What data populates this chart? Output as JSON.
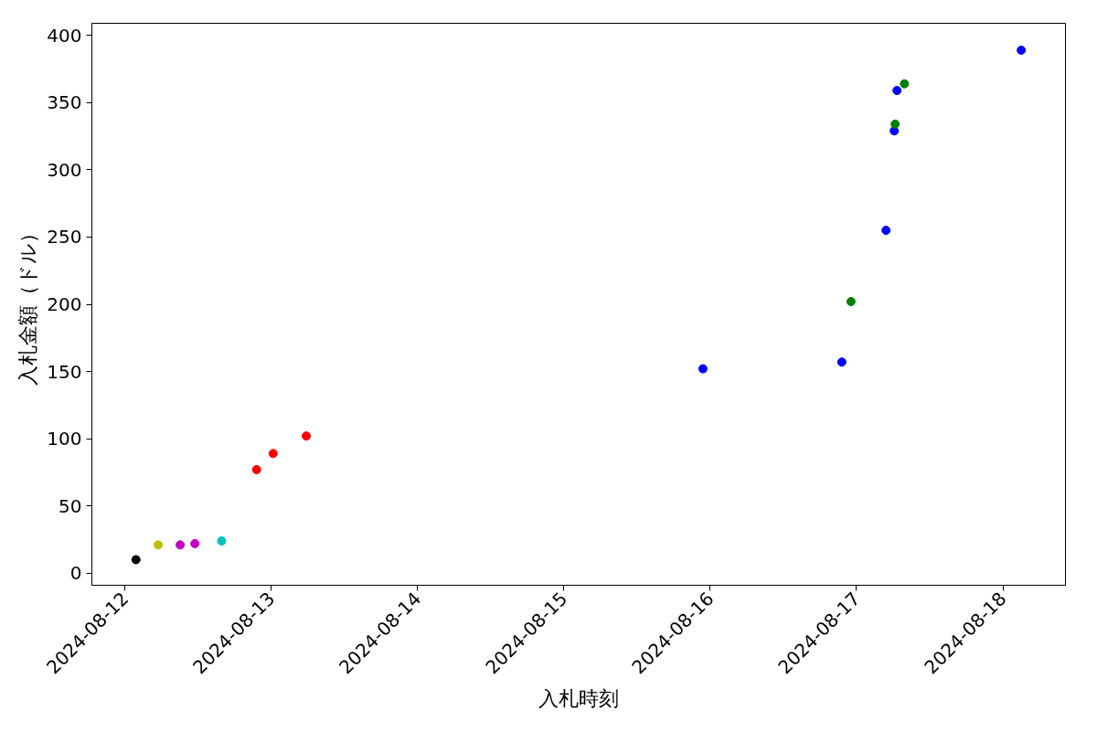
{
  "chart_data": {
    "type": "scatter",
    "xlabel": "入札時刻",
    "ylabel": "入札金額（ドル）",
    "x": [
      "2024-08-12T01:48",
      "2024-08-12T05:26",
      "2024-08-12T09:03",
      "2024-08-12T11:28",
      "2024-08-12T15:51",
      "2024-08-12T21:35",
      "2024-08-13T00:18",
      "2024-08-13T05:44",
      "2024-08-15T22:48",
      "2024-08-16T21:35",
      "2024-08-16T23:05",
      "2024-08-17T04:50",
      "2024-08-17T06:11",
      "2024-08-17T06:20",
      "2024-08-17T06:38",
      "2024-08-17T07:51",
      "2024-08-18T03:01"
    ],
    "values": [
      10,
      21,
      21,
      22,
      24,
      77,
      89,
      102,
      152,
      157,
      202,
      255,
      329,
      334,
      359,
      364,
      389
    ],
    "colors": [
      "#000000",
      "#bfbf00",
      "#bf00bf",
      "#bf00bf",
      "#00bfbf",
      "#ff0000",
      "#ff0000",
      "#ff0000",
      "#0000ff",
      "#0000ff",
      "#008000",
      "#0000ff",
      "#0000ff",
      "#008000",
      "#0000ff",
      "#008000",
      "#0000ff"
    ],
    "marker": "circle",
    "xlim": [
      "2024-08-11T18:34",
      "2024-08-18T10:16"
    ],
    "xticks": [
      "2024-08-12",
      "2024-08-13",
      "2024-08-14",
      "2024-08-15",
      "2024-08-16",
      "2024-08-17",
      "2024-08-18"
    ],
    "ylim": [
      -9,
      409
    ],
    "yticks": [
      0,
      50,
      100,
      150,
      200,
      250,
      300,
      350,
      400
    ],
    "grid": false
  }
}
